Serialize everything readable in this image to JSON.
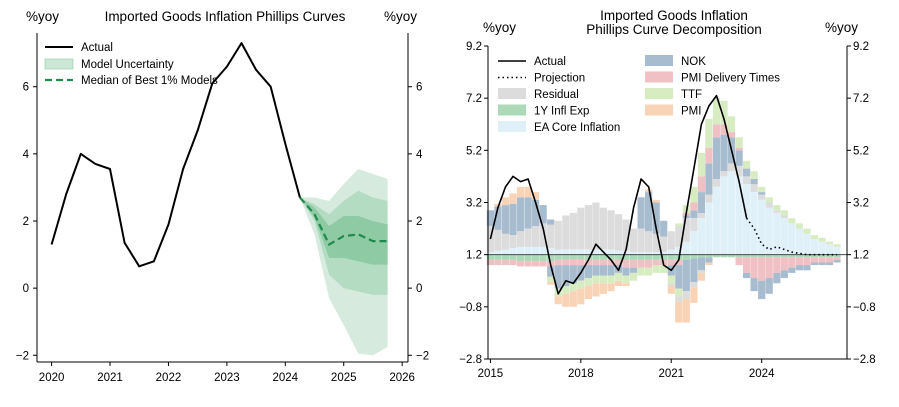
{
  "chart_data": [
    {
      "type": "line",
      "title": "Imported Goods Inflation Phillips Curves",
      "ylabel_left": "%yoy",
      "ylabel_right": "%yoy",
      "xlim": [
        2019.75,
        2026.1
      ],
      "ylim": [
        -2.2,
        7.6
      ],
      "x_ticks": [
        2020,
        2021,
        2022,
        2023,
        2024,
        2025,
        2026
      ],
      "y_ticks": [
        -2,
        0,
        2,
        4,
        6
      ],
      "legend_position": "top-left",
      "legend": [
        "Actual",
        "Model Uncertainty",
        "Median of Best 1% Models"
      ],
      "actual": {
        "x": [
          2020.0,
          2020.25,
          2020.5,
          2020.75,
          2021.0,
          2021.25,
          2021.5,
          2021.75,
          2022.0,
          2022.25,
          2022.5,
          2022.75,
          2023.0,
          2023.25,
          2023.5,
          2023.75,
          2024.0,
          2024.25
        ],
        "y": [
          1.3,
          2.8,
          4.0,
          3.7,
          3.55,
          1.35,
          0.65,
          0.8,
          1.9,
          3.55,
          4.7,
          6.1,
          6.6,
          7.3,
          6.5,
          6.0,
          4.3,
          2.7
        ]
      },
      "median": {
        "x": [
          2024.25,
          2024.5,
          2024.75,
          2025.0,
          2025.25,
          2025.5,
          2025.75
        ],
        "y": [
          2.7,
          2.2,
          1.3,
          1.55,
          1.6,
          1.4,
          1.4
        ]
      },
      "bands": {
        "x": [
          2024.25,
          2024.5,
          2024.75,
          2025.0,
          2025.25,
          2025.5,
          2025.75
        ],
        "outer_lower": [
          2.7,
          1.6,
          -0.3,
          -1.1,
          -1.95,
          -2.0,
          -1.75
        ],
        "outer_upper": [
          2.7,
          2.7,
          2.6,
          3.1,
          3.55,
          3.4,
          3.25
        ],
        "mid_lower": [
          2.7,
          2.0,
          0.4,
          0.0,
          -0.1,
          -0.2,
          -0.2
        ],
        "mid_upper": [
          2.7,
          2.5,
          2.2,
          2.6,
          2.9,
          2.7,
          2.6
        ],
        "inner_lower": [
          2.7,
          2.1,
          0.9,
          0.9,
          0.8,
          0.7,
          0.7
        ],
        "inner_upper": [
          2.7,
          2.4,
          1.85,
          2.15,
          2.15,
          2.0,
          1.9
        ]
      }
    },
    {
      "type": "bar",
      "stacked": true,
      "title_line1": "Imported Goods Inflation",
      "title_line2": "Phillips Curve Decomposition",
      "ylabel_left": "%yoy",
      "ylabel_right": "%yoy",
      "baseline": 1.2,
      "xlim": [
        2014.92,
        2026.83
      ],
      "ylim": [
        -2.8,
        9.2
      ],
      "x_ticks": [
        2015,
        2018,
        2021,
        2024
      ],
      "y_ticks": [
        -2.8,
        -0.8,
        1.2,
        3.2,
        5.2,
        7.2,
        9.2
      ],
      "legend_position": "top-left",
      "colors": {
        "NOK": "#a8bccf",
        "PMI Delivery Times": "#efc0c4",
        "Residual": "#dcdcdc",
        "TTF": "#d7ecc0",
        "1Y Infl Exp": "#acd9b7",
        "PMI": "#f9d3b6",
        "EA Core Inflation": "#e0f0f9"
      },
      "legend": [
        "Actual",
        "Projection",
        "Residual",
        "1Y Infl Exp",
        "EA Core Inflation",
        "NOK",
        "PMI Delivery Times",
        "TTF",
        "PMI"
      ],
      "x": [
        2015.0,
        2015.25,
        2015.5,
        2015.75,
        2016.0,
        2016.25,
        2016.5,
        2016.75,
        2017.0,
        2017.25,
        2017.5,
        2017.75,
        2018.0,
        2018.25,
        2018.5,
        2018.75,
        2019.0,
        2019.25,
        2019.5,
        2019.75,
        2020.0,
        2020.25,
        2020.5,
        2020.75,
        2021.0,
        2021.25,
        2021.5,
        2021.75,
        2022.0,
        2022.25,
        2022.5,
        2022.75,
        2023.0,
        2023.25,
        2023.5,
        2023.75,
        2024.0,
        2024.25,
        2024.5,
        2024.75,
        2025.0,
        2025.25,
        2025.5,
        2025.75,
        2026.0,
        2026.25,
        2026.5
      ],
      "actual": [
        1.8,
        3.0,
        3.8,
        4.2,
        4.0,
        4.1,
        3.2,
        2.2,
        0.8,
        -0.3,
        0.2,
        0.1,
        0.5,
        1.0,
        1.6,
        1.3,
        1.0,
        0.6,
        1.4,
        3.0,
        4.1,
        3.8,
        2.2,
        0.8,
        0.6,
        1.0,
        2.8,
        4.5,
        6.2,
        6.9,
        7.3,
        6.4,
        5.2,
        4.0,
        2.6
      ],
      "projection": [
        2.6,
        2.2,
        1.6,
        1.4,
        1.5,
        1.4,
        1.3,
        1.25,
        1.2,
        1.2,
        1.2,
        1.2,
        1.2
      ],
      "series_pos": [
        {
          "name": "EA Core Inflation",
          "values": [
            0.1,
            0.15,
            0.2,
            0.25,
            0.3,
            0.3,
            0.3,
            0.3,
            0.25,
            0.2,
            0.2,
            0.2,
            0.2,
            0.2,
            0.2,
            0.2,
            0.2,
            0.15,
            0.15,
            0.1,
            0.1,
            0.1,
            0.1,
            0.1,
            0.2,
            0.3,
            0.5,
            0.9,
            1.4,
            2.0,
            2.6,
            3.0,
            3.2,
            3.0,
            2.7,
            2.4,
            2.1,
            1.8,
            1.6,
            1.4,
            1.2,
            1.0,
            0.8,
            0.6,
            0.5,
            0.4,
            0.3
          ]
        },
        {
          "name": "Residual",
          "values": [
            1.0,
            0.8,
            0.6,
            0.5,
            0.6,
            0.7,
            0.8,
            0.9,
            0.9,
            1.1,
            1.3,
            1.4,
            1.6,
            1.7,
            1.8,
            1.6,
            1.5,
            1.4,
            1.2,
            0.9,
            0.9,
            0.8,
            0.7,
            0.6,
            0.7,
            0.8,
            0.9,
            0.5,
            0.2,
            0.3,
            0.3,
            0.2,
            0.3,
            0.4,
            0.3,
            0.3,
            0.2,
            0.2,
            0.1,
            0.1,
            0.0,
            0.0,
            0.0,
            0.0,
            0.0,
            0.0,
            0.0
          ]
        },
        {
          "name": "NOK",
          "values": [
            0.6,
            0.9,
            1.1,
            1.2,
            1.3,
            1.2,
            1.0,
            0.7,
            0.2,
            0.0,
            0.0,
            0.0,
            0.0,
            0.0,
            0.0,
            0.0,
            0.0,
            0.0,
            0.0,
            0.0,
            1.2,
            1.5,
            1.2,
            0.6,
            0.0,
            0.0,
            0.1,
            0.3,
            0.8,
            1.2,
            1.6,
            1.4,
            1.0,
            0.6,
            0.3,
            0.2,
            0.1,
            0.0,
            0.0,
            0.0,
            0.0,
            0.0,
            0.0,
            0.0,
            0.0,
            0.0,
            0.0
          ]
        },
        {
          "name": "PMI Delivery Times",
          "values": [
            0.0,
            0.0,
            0.0,
            0.0,
            0.0,
            0.0,
            0.0,
            0.0,
            0.0,
            0.0,
            0.0,
            0.0,
            0.0,
            0.0,
            0.0,
            0.0,
            0.0,
            0.0,
            0.0,
            0.0,
            0.0,
            0.0,
            0.0,
            0.0,
            0.0,
            0.0,
            0.1,
            0.3,
            0.6,
            0.6,
            0.5,
            0.4,
            0.2,
            0.1,
            0.0,
            0.0,
            0.0,
            0.0,
            0.0,
            0.0,
            0.0,
            0.0,
            0.0,
            0.0,
            0.0,
            0.0,
            0.0
          ]
        },
        {
          "name": "TTF",
          "values": [
            0.0,
            0.0,
            0.0,
            0.0,
            0.0,
            0.0,
            0.0,
            0.0,
            0.0,
            0.0,
            0.0,
            0.0,
            0.0,
            0.0,
            0.0,
            0.0,
            0.0,
            0.0,
            0.0,
            0.0,
            0.0,
            0.0,
            0.0,
            0.0,
            0.0,
            0.1,
            0.3,
            0.6,
            0.9,
            1.1,
            1.0,
            0.9,
            0.6,
            0.4,
            0.3,
            0.3,
            0.2,
            0.2,
            0.2,
            0.2,
            0.2,
            0.2,
            0.2,
            0.15,
            0.15,
            0.1,
            0.1
          ]
        },
        {
          "name": "PMI",
          "values": [
            0.0,
            0.1,
            0.3,
            0.4,
            0.4,
            0.4,
            0.3,
            0.0,
            0.0,
            0.0,
            0.0,
            0.0,
            0.0,
            0.0,
            0.0,
            0.0,
            0.0,
            0.0,
            0.0,
            0.0,
            0.0,
            0.1,
            0.1,
            0.0,
            0.0,
            0.0,
            0.0,
            0.0,
            0.0,
            0.0,
            0.0,
            0.0,
            0.0,
            0.0,
            0.0,
            0.0,
            0.0,
            0.0,
            0.0,
            0.0,
            0.0,
            0.0,
            0.0,
            0.0,
            0.0,
            0.0,
            0.0
          ]
        }
      ],
      "series_neg": [
        {
          "name": "EA Core Inflation",
          "values": [
            0.0,
            0.0,
            0.0,
            0.0,
            0.0,
            0.0,
            0.0,
            0.0,
            0.0,
            0.0,
            0.0,
            0.0,
            0.0,
            0.0,
            0.0,
            0.0,
            0.0,
            0.0,
            0.0,
            0.0,
            0.0,
            0.0,
            0.0,
            0.0,
            0.0,
            0.0,
            0.0,
            0.0,
            0.0,
            0.0,
            0.0,
            0.0,
            0.0,
            0.0,
            0.0,
            0.0,
            0.0,
            0.0,
            0.0,
            0.0,
            0.0,
            0.0,
            0.0,
            0.0,
            0.0,
            0.0,
            0.0
          ]
        },
        {
          "name": "1Y Infl Exp",
          "values": [
            -0.2,
            -0.2,
            -0.2,
            -0.2,
            -0.25,
            -0.25,
            -0.25,
            -0.25,
            -0.25,
            -0.2,
            -0.2,
            -0.2,
            -0.2,
            -0.2,
            -0.2,
            -0.2,
            -0.2,
            -0.2,
            -0.2,
            -0.2,
            -0.2,
            -0.2,
            -0.2,
            -0.2,
            -0.2,
            -0.2,
            -0.2,
            -0.15,
            -0.1,
            -0.1,
            -0.1,
            -0.1,
            -0.1,
            -0.1,
            -0.1,
            -0.1,
            -0.1,
            -0.1,
            -0.1,
            -0.1,
            -0.1,
            -0.1,
            -0.1,
            -0.1,
            -0.1,
            -0.1,
            -0.1
          ]
        },
        {
          "name": "PMI Delivery Times",
          "values": [
            -0.2,
            -0.2,
            -0.2,
            -0.2,
            -0.2,
            -0.2,
            -0.2,
            -0.2,
            -0.2,
            -0.2,
            -0.2,
            -0.2,
            -0.2,
            -0.2,
            -0.2,
            -0.2,
            -0.2,
            -0.2,
            -0.3,
            -0.3,
            -0.3,
            -0.3,
            -0.2,
            -0.2,
            -0.2,
            -0.2,
            0.0,
            0.0,
            0.0,
            0.0,
            0.0,
            0.0,
            0.0,
            -0.3,
            -0.6,
            -0.8,
            -0.9,
            -0.8,
            -0.6,
            -0.5,
            -0.4,
            -0.3,
            -0.3,
            -0.2,
            -0.2,
            -0.2,
            -0.1
          ]
        },
        {
          "name": "NOK",
          "values": [
            0.0,
            0.0,
            0.0,
            0.0,
            0.0,
            0.0,
            0.0,
            0.0,
            -0.4,
            -0.9,
            -0.8,
            -0.7,
            -0.6,
            -0.5,
            -0.4,
            -0.4,
            -0.4,
            -0.3,
            -0.3,
            -0.2,
            0.0,
            0.0,
            0.0,
            0.0,
            -0.4,
            -0.9,
            -1.2,
            -0.9,
            -0.5,
            -0.2,
            0.0,
            0.0,
            0.0,
            0.0,
            -0.2,
            -0.5,
            -0.7,
            -0.6,
            -0.4,
            -0.3,
            -0.2,
            -0.2,
            -0.2,
            -0.1,
            -0.1,
            -0.1,
            -0.1
          ]
        },
        {
          "name": "TTF",
          "values": [
            0.0,
            0.0,
            0.0,
            0.0,
            0.0,
            0.0,
            0.0,
            0.0,
            -0.2,
            -0.3,
            -0.3,
            -0.3,
            -0.3,
            -0.3,
            -0.3,
            -0.3,
            -0.3,
            -0.3,
            -0.3,
            -0.3,
            -0.3,
            -0.3,
            -0.3,
            -0.3,
            -0.3,
            -0.3,
            0.0,
            0.0,
            0.0,
            0.0,
            0.0,
            0.0,
            0.0,
            0.0,
            0.0,
            0.0,
            0.0,
            0.0,
            0.0,
            0.0,
            0.0,
            0.0,
            0.0,
            0.0,
            0.0,
            0.0,
            0.0
          ]
        },
        {
          "name": "Residual",
          "values": [
            0.0,
            0.0,
            0.0,
            0.0,
            0.0,
            0.0,
            0.0,
            0.0,
            0.0,
            0.0,
            0.0,
            0.0,
            0.0,
            0.0,
            0.0,
            0.0,
            0.0,
            0.0,
            0.0,
            0.0,
            0.0,
            0.0,
            0.0,
            0.0,
            -0.1,
            -0.2,
            -0.3,
            -0.2,
            -0.1,
            0.0,
            0.0,
            0.0,
            0.0,
            0.0,
            0.0,
            0.0,
            0.0,
            0.0,
            0.0,
            0.0,
            0.0,
            0.0,
            0.0,
            0.0,
            0.0,
            0.0,
            0.0
          ]
        },
        {
          "name": "PMI",
          "values": [
            0.0,
            0.0,
            0.0,
            0.0,
            0.0,
            0.0,
            0.0,
            0.0,
            -0.1,
            -0.3,
            -0.5,
            -0.6,
            -0.6,
            -0.5,
            -0.5,
            -0.4,
            -0.3,
            -0.2,
            -0.1,
            0.0,
            0.0,
            0.0,
            0.0,
            0.0,
            -0.3,
            -0.8,
            -0.9,
            -0.6,
            -0.3,
            -0.1,
            0.0,
            0.0,
            0.0,
            0.0,
            0.0,
            0.0,
            0.0,
            0.0,
            0.0,
            0.0,
            0.0,
            0.0,
            0.0,
            0.0,
            0.0,
            0.0,
            0.0
          ]
        }
      ]
    }
  ]
}
